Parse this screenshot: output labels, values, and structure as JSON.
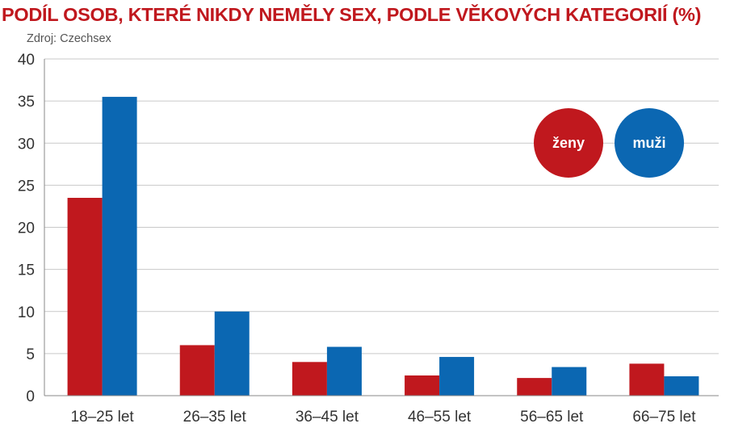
{
  "title": "PODÍL OSOB, KTERÉ NIKDY NEMĚLY SEX, PODLE VĚKOVÝCH KATEGORIÍ (%)",
  "subtitle": "Zdroj: Czechsex",
  "chart_data": {
    "type": "bar",
    "title": "PODÍL OSOB, KTERÉ NIKDY NEMĚLY SEX, PODLE VĚKOVÝCH KATEGORIÍ (%)",
    "categories": [
      "18–25 let",
      "26–35 let",
      "36–45 let",
      "46–55 let",
      "56–65 let",
      "66–75 let"
    ],
    "series": [
      {
        "name": "ženy",
        "color": "#c0181e",
        "values": [
          23.5,
          6.0,
          4.0,
          2.4,
          2.1,
          3.8
        ]
      },
      {
        "name": "muži",
        "color": "#0b67b2",
        "values": [
          35.5,
          10.0,
          5.8,
          4.6,
          3.4,
          2.3
        ]
      }
    ],
    "ylim": [
      0,
      40
    ],
    "yticks": [
      0,
      5,
      10,
      15,
      20,
      25,
      30,
      35,
      40
    ],
    "grid": true,
    "legend": "top-right"
  }
}
